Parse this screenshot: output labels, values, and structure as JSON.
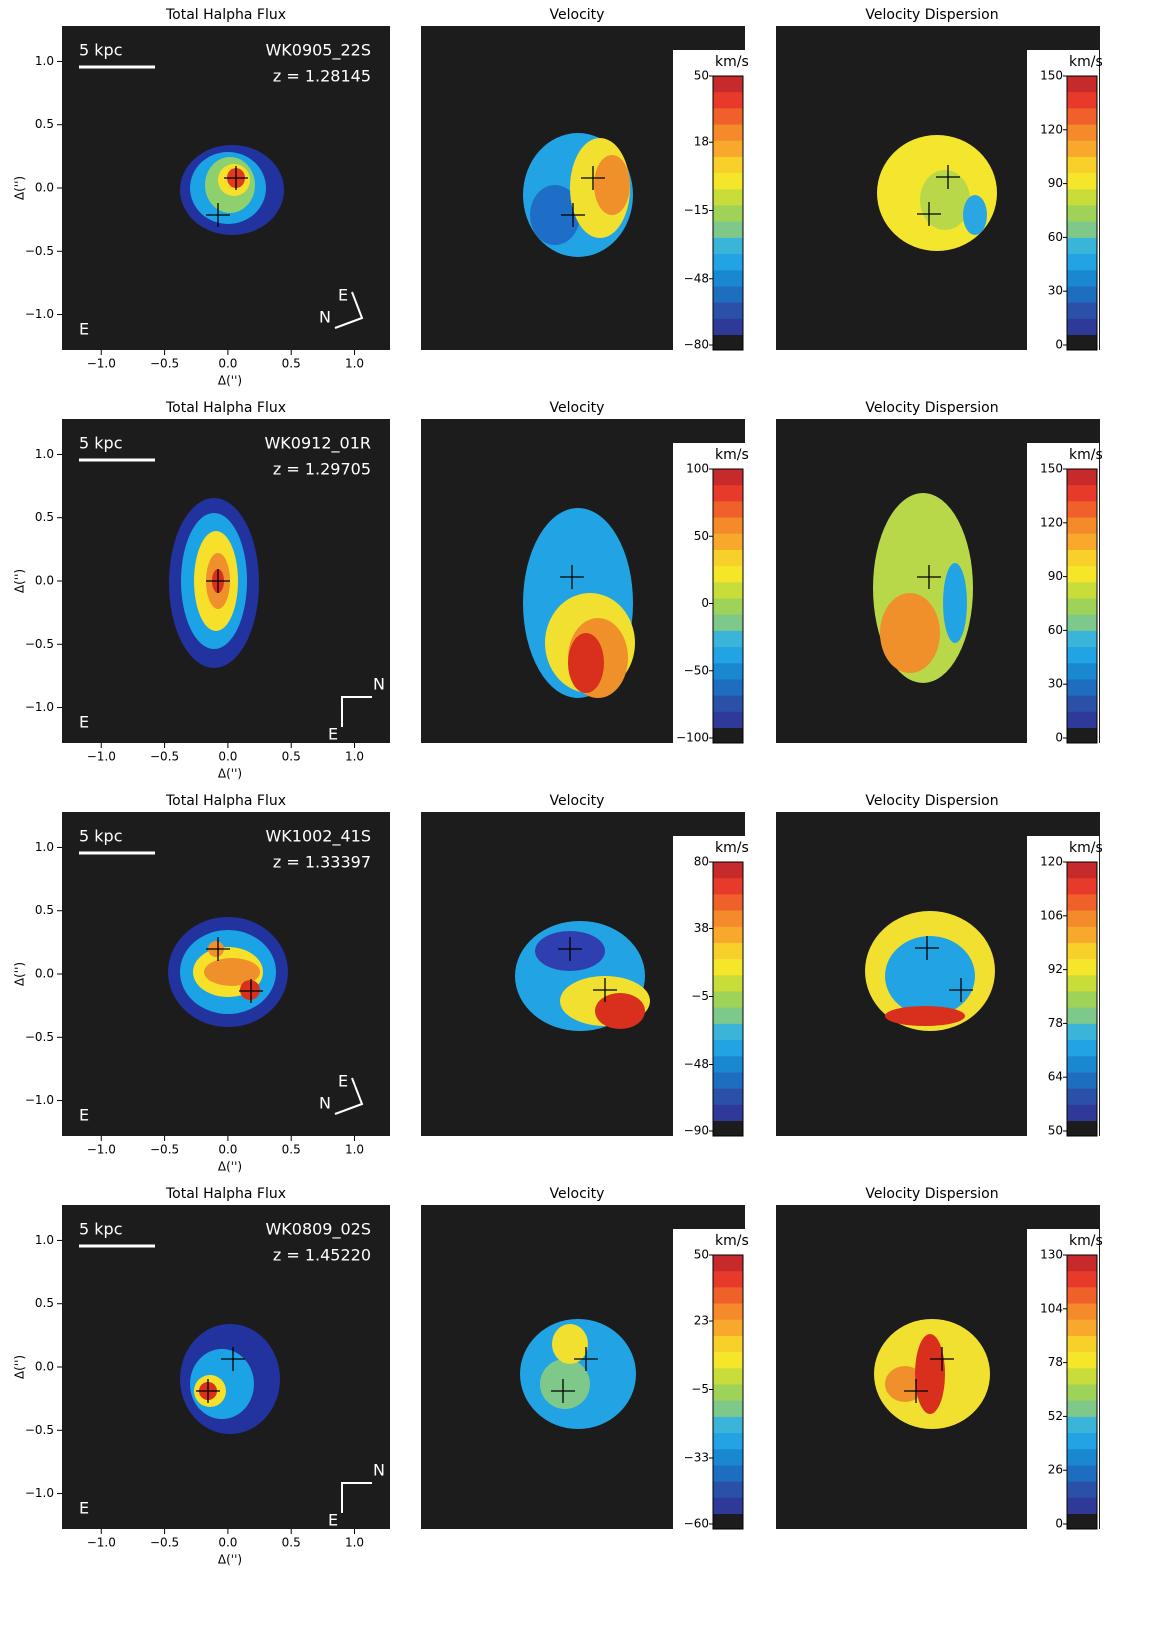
{
  "colormap": [
    "#c62a2a",
    "#e83a2a",
    "#f0602a",
    "#f58a2a",
    "#f8a82a",
    "#f8d02a",
    "#f5e62a",
    "#c8dc3a",
    "#9ed258",
    "#7ec88a",
    "#3ab4d8",
    "#22a4e4",
    "#1a88d0",
    "#1e6ec0",
    "#2a50a8",
    "#2f3a98"
  ],
  "chart_data": [
    {
      "type": "flux",
      "title": "Total Halpha Flux",
      "name": "WK0905_22S",
      "redshift": "z = 1.28145",
      "scale_label": "5 kpc",
      "corner_label": "E",
      "compass": {
        "n": "N",
        "e": "E"
      },
      "compass_rotated": true,
      "xlabel": "Δ('')",
      "ylabel": "Δ('')",
      "xlim": [
        -1.31,
        1.28
      ],
      "ylim": [
        -1.28,
        1.28
      ],
      "xticks": [
        {
          "value": -1,
          "label": "−1.0"
        },
        {
          "value": -0.5,
          "label": "−0.5"
        },
        {
          "value": 0,
          "label": "0.0"
        },
        {
          "value": 0.5,
          "label": "0.5"
        },
        {
          "value": 1,
          "label": "1.0"
        }
      ],
      "yticks": [
        {
          "value": -1,
          "label": "−1.0"
        },
        {
          "value": -0.5,
          "label": "−0.5"
        },
        {
          "value": 0,
          "label": "0.0"
        },
        {
          "value": 0.5,
          "label": "0.5"
        },
        {
          "value": 1,
          "label": "1.0"
        }
      ]
    },
    {
      "type": "velocity",
      "title": "Velocity",
      "colorbar_label": "km/s",
      "clim": [
        -80,
        50
      ],
      "cticks": [
        50,
        18,
        {
          "value": -15,
          "label": "−15"
        },
        {
          "value": -48,
          "label": "−48"
        },
        {
          "value": -80,
          "label": "−80"
        }
      ]
    },
    {
      "type": "dispersion",
      "title": "Velocity Dispersion",
      "colorbar_label": "km/s",
      "clim": [
        0,
        150
      ],
      "cticks": [
        150,
        120,
        90,
        60,
        30,
        0
      ]
    },
    {
      "type": "flux",
      "title": "Total Halpha Flux",
      "name": "WK0912_01R",
      "redshift": "z = 1.29705",
      "scale_label": "5 kpc",
      "corner_label": "E",
      "compass": {
        "n": "N",
        "e": "E"
      },
      "compass_rotated": false,
      "xlabel": "Δ('')",
      "ylabel": "Δ('')",
      "xlim": [
        -1.31,
        1.28
      ],
      "ylim": [
        -1.28,
        1.28
      ],
      "xticks": [
        {
          "value": -1,
          "label": "−1.0"
        },
        {
          "value": -0.5,
          "label": "−0.5"
        },
        {
          "value": 0,
          "label": "0.0"
        },
        {
          "value": 0.5,
          "label": "0.5"
        },
        {
          "value": 1,
          "label": "1.0"
        }
      ],
      "yticks": [
        {
          "value": -1,
          "label": "−1.0"
        },
        {
          "value": -0.5,
          "label": "−0.5"
        },
        {
          "value": 0,
          "label": "0.0"
        },
        {
          "value": 0.5,
          "label": "0.5"
        },
        {
          "value": 1,
          "label": "1.0"
        }
      ]
    },
    {
      "type": "velocity",
      "title": "Velocity",
      "colorbar_label": "km/s",
      "clim": [
        -100,
        100
      ],
      "cticks": [
        100,
        50,
        0,
        {
          "value": -50,
          "label": "−50"
        },
        {
          "value": -100,
          "label": "−100"
        }
      ]
    },
    {
      "type": "dispersion",
      "title": "Velocity Dispersion",
      "colorbar_label": "km/s",
      "clim": [
        0,
        150
      ],
      "cticks": [
        150,
        120,
        90,
        60,
        30,
        0
      ]
    },
    {
      "type": "flux",
      "title": "Total Halpha Flux",
      "name": "WK1002_41S",
      "redshift": "z = 1.33397",
      "scale_label": "5 kpc",
      "corner_label": "E",
      "compass": {
        "n": "N",
        "e": "E"
      },
      "compass_rotated": true,
      "xlabel": "Δ('')",
      "ylabel": "Δ('')",
      "xlim": [
        -1.31,
        1.28
      ],
      "ylim": [
        -1.28,
        1.28
      ],
      "xticks": [
        {
          "value": -1,
          "label": "−1.0"
        },
        {
          "value": -0.5,
          "label": "−0.5"
        },
        {
          "value": 0,
          "label": "0.0"
        },
        {
          "value": 0.5,
          "label": "0.5"
        },
        {
          "value": 1,
          "label": "1.0"
        }
      ],
      "yticks": [
        {
          "value": -1,
          "label": "−1.0"
        },
        {
          "value": -0.5,
          "label": "−0.5"
        },
        {
          "value": 0,
          "label": "0.0"
        },
        {
          "value": 0.5,
          "label": "0.5"
        },
        {
          "value": 1,
          "label": "1.0"
        }
      ]
    },
    {
      "type": "velocity",
      "title": "Velocity",
      "colorbar_label": "km/s",
      "clim": [
        -90,
        80
      ],
      "cticks": [
        80,
        38,
        {
          "value": -5,
          "label": "−5"
        },
        {
          "value": -48,
          "label": "−48"
        },
        {
          "value": -90,
          "label": "−90"
        }
      ]
    },
    {
      "type": "dispersion",
      "title": "Velocity Dispersion",
      "colorbar_label": "km/s",
      "clim": [
        50,
        120
      ],
      "cticks": [
        120,
        106,
        92,
        78,
        64,
        50
      ]
    },
    {
      "type": "flux",
      "title": "Total Halpha Flux",
      "name": "WK0809_02S",
      "redshift": "z = 1.45220",
      "scale_label": "5 kpc",
      "corner_label": "E",
      "compass": {
        "n": "N",
        "e": "E"
      },
      "compass_rotated": false,
      "xlabel": "Δ('')",
      "ylabel": "Δ('')",
      "xlim": [
        -1.31,
        1.28
      ],
      "ylim": [
        -1.28,
        1.28
      ],
      "xticks": [
        {
          "value": -1,
          "label": "−1.0"
        },
        {
          "value": -0.5,
          "label": "−0.5"
        },
        {
          "value": 0,
          "label": "0.0"
        },
        {
          "value": 0.5,
          "label": "0.5"
        },
        {
          "value": 1,
          "label": "1.0"
        }
      ],
      "yticks": [
        {
          "value": -1,
          "label": "−1.0"
        },
        {
          "value": -0.5,
          "label": "−0.5"
        },
        {
          "value": 0,
          "label": "0.0"
        },
        {
          "value": 0.5,
          "label": "0.5"
        },
        {
          "value": 1,
          "label": "1.0"
        }
      ]
    },
    {
      "type": "velocity",
      "title": "Velocity",
      "colorbar_label": "km/s",
      "clim": [
        -60,
        50
      ],
      "cticks": [
        50,
        23,
        {
          "value": -5,
          "label": "−5"
        },
        {
          "value": -33,
          "label": "−33"
        },
        {
          "value": -60,
          "label": "−60"
        }
      ]
    },
    {
      "type": "dispersion",
      "title": "Velocity Dispersion",
      "colorbar_label": "km/s",
      "clim": [
        0,
        130
      ],
      "cticks": [
        130,
        104,
        78,
        52,
        26,
        0
      ]
    }
  ]
}
